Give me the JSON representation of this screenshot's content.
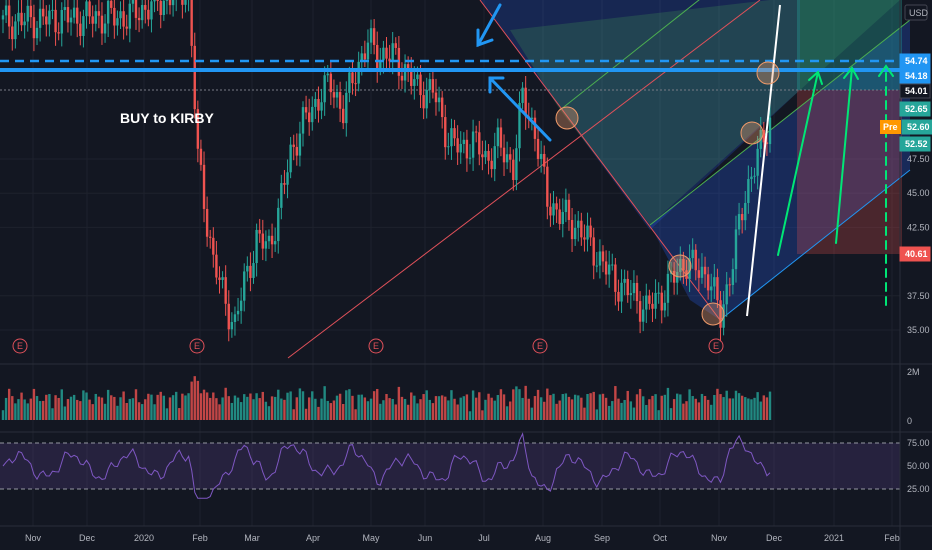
{
  "chart_data": {
    "type": "candlestick",
    "currency": "USD",
    "annotation": "BUY to KIRBY",
    "months": [
      {
        "label": "Nov"
      },
      {
        "label": "Dec"
      },
      {
        "label": "2020"
      },
      {
        "label": "Feb"
      },
      {
        "label": "Mar"
      },
      {
        "label": "Apr"
      },
      {
        "label": "May"
      },
      {
        "label": "Jun"
      },
      {
        "label": "Jul"
      },
      {
        "label": "Aug"
      },
      {
        "label": "Sep"
      },
      {
        "label": "Oct"
      },
      {
        "label": "Nov"
      },
      {
        "label": "Dec"
      },
      {
        "label": "2021"
      },
      {
        "label": "Feb"
      }
    ],
    "price_ticks": [
      35.0,
      37.5,
      42.5,
      45.0,
      47.5
    ],
    "price_tags": [
      {
        "value": "54.74",
        "color": "#2196f3",
        "price": 54.74
      },
      {
        "value": "54.18",
        "color": "#2196f3",
        "price": 54.18
      },
      {
        "value": "54.01",
        "color": "#131722",
        "price": 54.01
      },
      {
        "value": "52.65",
        "color": "#26a69a",
        "price": 52.65
      },
      {
        "value": "52.60",
        "color": "#26a69a",
        "price": 52.6,
        "prefix": "Pre"
      },
      {
        "value": "52.52",
        "color": "#26a69a",
        "price": 52.52
      },
      {
        "value": "40.61",
        "color": "#ef5350",
        "price": 40.61
      }
    ],
    "volume_ticks": [
      "2M",
      "0"
    ],
    "rsi_ticks": [
      "75.00",
      "50.00",
      "25.00"
    ],
    "earnings_marker": "E",
    "earnings_count": 5,
    "price_waypoints": [
      [
        0,
        57.5
      ],
      [
        20,
        57.8
      ],
      [
        40,
        57.9
      ],
      [
        60,
        60.0
      ],
      [
        63,
        47.5
      ],
      [
        68,
        40.0
      ],
      [
        72,
        37.0
      ],
      [
        75,
        35.3
      ],
      [
        78,
        38.5
      ],
      [
        82,
        41.5
      ],
      [
        86,
        41.2
      ],
      [
        89,
        43.5
      ],
      [
        93,
        48.0
      ],
      [
        98,
        50.5
      ],
      [
        103,
        52.3
      ],
      [
        106,
        53.0
      ],
      [
        110,
        51.0
      ],
      [
        114,
        54.0
      ],
      [
        118,
        56.0
      ],
      [
        121,
        55.2
      ],
      [
        126,
        55.0
      ],
      [
        130,
        54.0
      ],
      [
        134,
        52.6
      ],
      [
        139,
        52.5
      ],
      [
        144,
        49.0
      ],
      [
        148,
        48.2
      ],
      [
        152,
        48.8
      ],
      [
        156,
        47.5
      ],
      [
        160,
        48.5
      ],
      [
        165,
        47.0
      ],
      [
        168,
        52.0
      ],
      [
        172,
        49.5
      ],
      [
        176,
        44.5
      ],
      [
        180,
        43.5
      ],
      [
        186,
        42.5
      ],
      [
        192,
        40.5
      ],
      [
        198,
        38.5
      ],
      [
        204,
        37.5
      ],
      [
        208,
        36.5
      ],
      [
        214,
        37.8
      ],
      [
        220,
        40.0
      ],
      [
        224,
        39.5
      ],
      [
        228,
        39.0
      ],
      [
        232,
        36.0
      ],
      [
        236,
        40.0
      ],
      [
        240,
        45.0
      ],
      [
        246,
        49.0
      ],
      [
        248,
        50.5
      ]
    ]
  }
}
